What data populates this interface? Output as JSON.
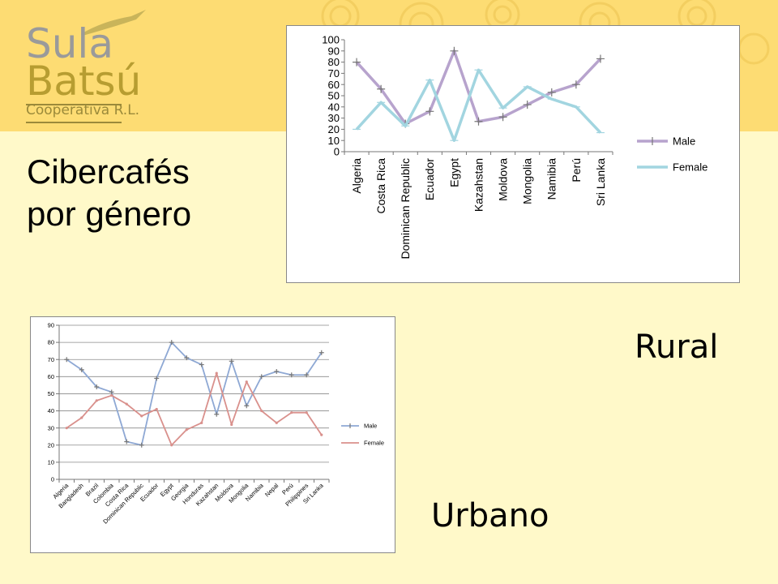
{
  "logo": {
    "line1": "Sula",
    "line2": "Batsú",
    "line3": "Cooperativa R.L."
  },
  "title": {
    "line1": "Cibercafés",
    "line2": "por género"
  },
  "labels": {
    "rural": "Rural",
    "urban": "Urbano"
  },
  "colors": {
    "background": "#fff9c9",
    "band": "#fddc73",
    "rural_male": "#b7a3cd",
    "rural_female": "#a2d5e0",
    "urban_male": "#8ea8d4",
    "urban_female": "#d9908c"
  },
  "chart_data": [
    {
      "id": "rural",
      "type": "line",
      "categories": [
        "Algeria",
        "Costa Rica",
        "Dominican Republic",
        "Ecuador",
        "Egypt",
        "Kazahstan",
        "Moldova",
        "Mongolia",
        "Namibia",
        "Perú",
        "Sri Lanka"
      ],
      "series": [
        {
          "name": "Male",
          "values": [
            80,
            56,
            25,
            36,
            90,
            27,
            31,
            42,
            53,
            60,
            83
          ]
        },
        {
          "name": "Female",
          "values": [
            20,
            44,
            23,
            64,
            10,
            73,
            39,
            58,
            47,
            40,
            17
          ]
        }
      ],
      "ylim": [
        0,
        100
      ],
      "yticks": [
        0,
        10,
        20,
        30,
        40,
        50,
        60,
        70,
        80,
        90,
        100
      ],
      "grid": false,
      "legend": "right"
    },
    {
      "id": "urban",
      "type": "line",
      "categories": [
        "Algeria",
        "Bangladesh",
        "Brazil",
        "Colombia",
        "Costa Rica",
        "Dominican Republic",
        "Ecuador",
        "Egypt",
        "Georgia",
        "Honduras",
        "Kazahstan",
        "Moldova",
        "Mongolia",
        "Namibia",
        "Nepal",
        "Perú",
        "Philippines",
        "Sri Lanka"
      ],
      "series": [
        {
          "name": "Male",
          "values": [
            70,
            64,
            54,
            51,
            22,
            20,
            59,
            80,
            71,
            67,
            38,
            69,
            43,
            60,
            63,
            61,
            61,
            74
          ]
        },
        {
          "name": "Female",
          "values": [
            30,
            36,
            46,
            49,
            44,
            37,
            41,
            20,
            29,
            33,
            62,
            32,
            57,
            40,
            33,
            39,
            39,
            26
          ]
        }
      ],
      "ylim": [
        0,
        90
      ],
      "yticks": [
        0,
        10,
        20,
        30,
        40,
        50,
        60,
        70,
        80,
        90
      ],
      "grid": true,
      "legend": "right"
    }
  ]
}
